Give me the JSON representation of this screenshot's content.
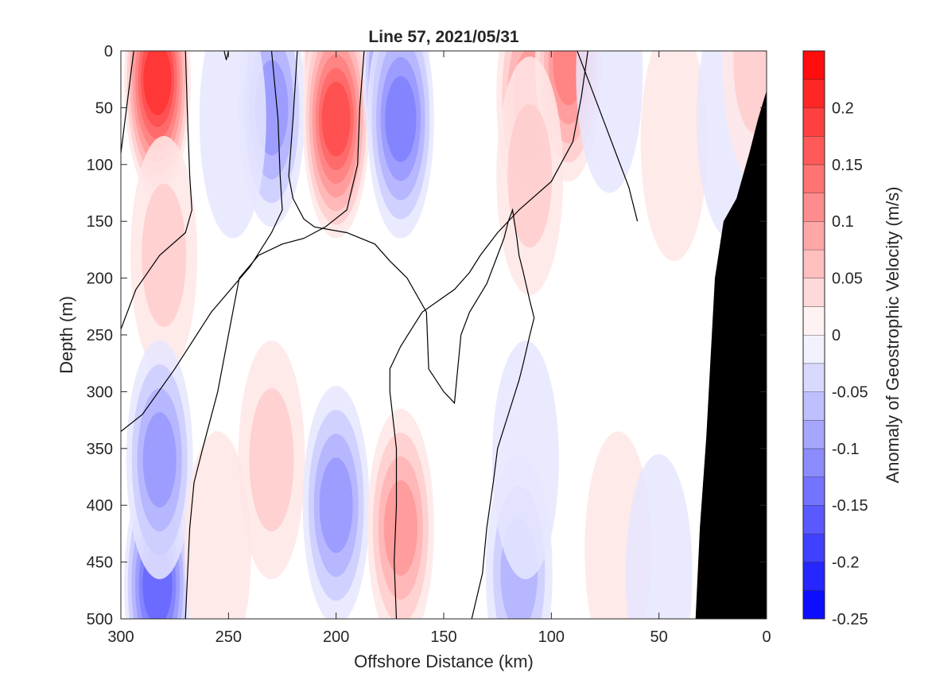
{
  "chart_data": {
    "type": "heatmap",
    "title": "Line 57, 2021/05/31",
    "xlabel": "Offshore Distance (km)",
    "ylabel": "Depth (m)",
    "xlim": [
      300,
      0
    ],
    "ylim": [
      0,
      500
    ],
    "x_reversed": true,
    "y_reversed": true,
    "xticks": [
      300,
      250,
      200,
      150,
      100,
      50,
      0
    ],
    "yticks": [
      0,
      50,
      100,
      150,
      200,
      250,
      300,
      350,
      400,
      450,
      500
    ],
    "colorbar": {
      "label": "Anomaly of Geostrophic Velocity (m/s)",
      "range": [
        -0.25,
        0.25
      ],
      "levels": [
        -0.25,
        -0.225,
        -0.2,
        -0.175,
        -0.15,
        -0.125,
        -0.1,
        -0.075,
        -0.05,
        -0.025,
        0,
        0.025,
        0.05,
        0.075,
        0.1,
        0.125,
        0.15,
        0.175,
        0.2,
        0.225,
        0.25
      ],
      "ticks": [
        0.2,
        0.15,
        0.1,
        0.05,
        0,
        -0.05,
        -0.1,
        -0.15,
        -0.2,
        -0.25
      ],
      "tick_labels": [
        "0.2",
        "0.15",
        "0.1",
        "0.05",
        "0",
        "-0.05",
        "-0.1",
        "-0.15",
        "-0.2",
        "-0.25"
      ],
      "colormap": "blue-white-red"
    },
    "features": [
      {
        "x": 283,
        "depth": 25,
        "value": 0.2
      },
      {
        "x": 280,
        "depth": 180,
        "value": 0.05
      },
      {
        "x": 283,
        "depth": 470,
        "value": -0.15
      },
      {
        "x": 282,
        "depth": 360,
        "value": -0.1
      },
      {
        "x": 230,
        "depth": 50,
        "value": -0.1
      },
      {
        "x": 248,
        "depth": 60,
        "value": -0.025
      },
      {
        "x": 230,
        "depth": 360,
        "value": 0.05
      },
      {
        "x": 255,
        "depth": 440,
        "value": 0.025
      },
      {
        "x": 200,
        "depth": 20,
        "value": 0.225
      },
      {
        "x": 200,
        "depth": 60,
        "value": 0.175
      },
      {
        "x": 200,
        "depth": 400,
        "value": -0.1
      },
      {
        "x": 172,
        "depth": 20,
        "value": -0.2
      },
      {
        "x": 170,
        "depth": 60,
        "value": -0.125
      },
      {
        "x": 170,
        "depth": 420,
        "value": 0.1
      },
      {
        "x": 110,
        "depth": 40,
        "value": 0.1
      },
      {
        "x": 92,
        "depth": 10,
        "value": 0.125
      },
      {
        "x": 110,
        "depth": 110,
        "value": 0.05
      },
      {
        "x": 115,
        "depth": 460,
        "value": -0.075
      },
      {
        "x": 112,
        "depth": 360,
        "value": -0.025
      },
      {
        "x": 73,
        "depth": 20,
        "value": -0.025
      },
      {
        "x": 69,
        "depth": 440,
        "value": 0.025
      },
      {
        "x": 43,
        "depth": 80,
        "value": 0.025
      },
      {
        "x": 50,
        "depth": 460,
        "value": -0.025
      },
      {
        "x": 17,
        "depth": 60,
        "value": -0.025
      },
      {
        "x": 5,
        "depth": 10,
        "value": 0.05
      }
    ],
    "zero_contours": [
      [
        [
          300,
          90
        ],
        [
          297,
          45
        ],
        [
          294,
          0
        ]
      ],
      [
        [
          270,
          0
        ],
        [
          269,
          60
        ],
        [
          268,
          110
        ],
        [
          267,
          140
        ],
        [
          270,
          160
        ],
        [
          282,
          180
        ],
        [
          293,
          210
        ],
        [
          300,
          245
        ]
      ],
      [
        [
          230,
          0
        ],
        [
          227,
          60
        ],
        [
          226,
          110
        ],
        [
          225,
          140
        ],
        [
          230,
          160
        ],
        [
          240,
          190
        ],
        [
          258,
          230
        ],
        [
          275,
          280
        ],
        [
          290,
          320
        ],
        [
          300,
          335
        ]
      ],
      [
        [
          250,
          0
        ],
        [
          251,
          8
        ],
        [
          252,
          0
        ]
      ],
      [
        [
          218,
          0
        ],
        [
          220,
          60
        ],
        [
          222,
          110
        ],
        [
          220,
          130
        ],
        [
          215,
          148
        ],
        [
          210,
          155
        ],
        [
          195,
          160
        ],
        [
          182,
          170
        ],
        [
          175,
          185
        ],
        [
          167,
          200
        ],
        [
          158,
          230
        ],
        [
          157,
          280
        ],
        [
          150,
          300
        ],
        [
          145,
          310
        ],
        [
          142,
          250
        ],
        [
          138,
          230
        ],
        [
          130,
          205
        ],
        [
          125,
          180
        ],
        [
          122,
          165
        ],
        [
          120,
          150
        ],
        [
          118,
          140
        ],
        [
          116,
          165
        ],
        [
          115,
          180
        ],
        [
          113,
          195
        ],
        [
          110,
          220
        ],
        [
          108,
          235
        ],
        [
          110,
          250
        ],
        [
          113,
          275
        ],
        [
          115,
          290
        ],
        [
          120,
          320
        ],
        [
          125,
          350
        ],
        [
          127,
          380
        ],
        [
          130,
          420
        ],
        [
          132,
          460
        ],
        [
          137,
          500
        ]
      ],
      [
        [
          187,
          0
        ],
        [
          189,
          50
        ],
        [
          190,
          100
        ],
        [
          195,
          140
        ],
        [
          205,
          155
        ],
        [
          215,
          165
        ],
        [
          225,
          170
        ],
        [
          236,
          180
        ],
        [
          245,
          200
        ],
        [
          250,
          250
        ],
        [
          255,
          300
        ],
        [
          262,
          350
        ],
        [
          266,
          380
        ],
        [
          268,
          420
        ],
        [
          270,
          500
        ]
      ],
      [
        [
          83,
          0
        ],
        [
          86,
          40
        ],
        [
          90,
          80
        ],
        [
          100,
          115
        ],
        [
          115,
          140
        ],
        [
          125,
          160
        ],
        [
          133,
          180
        ],
        [
          138,
          195
        ],
        [
          145,
          210
        ],
        [
          160,
          230
        ],
        [
          170,
          260
        ],
        [
          175,
          280
        ],
        [
          175,
          300
        ],
        [
          172,
          350
        ],
        [
          172,
          400
        ],
        [
          173,
          450
        ],
        [
          172,
          500
        ]
      ],
      [
        [
          88,
          0
        ],
        [
          82,
          30
        ],
        [
          76,
          60
        ],
        [
          70,
          90
        ],
        [
          64,
          120
        ],
        [
          60,
          150
        ]
      ]
    ],
    "bathymetry_polygon": [
      [
        0,
        35
      ],
      [
        4,
        60
      ],
      [
        8,
        90
      ],
      [
        14,
        130
      ],
      [
        20,
        150
      ],
      [
        24,
        200
      ],
      [
        28,
        340
      ],
      [
        31,
        420
      ],
      [
        33,
        500
      ],
      [
        0,
        500
      ]
    ]
  }
}
